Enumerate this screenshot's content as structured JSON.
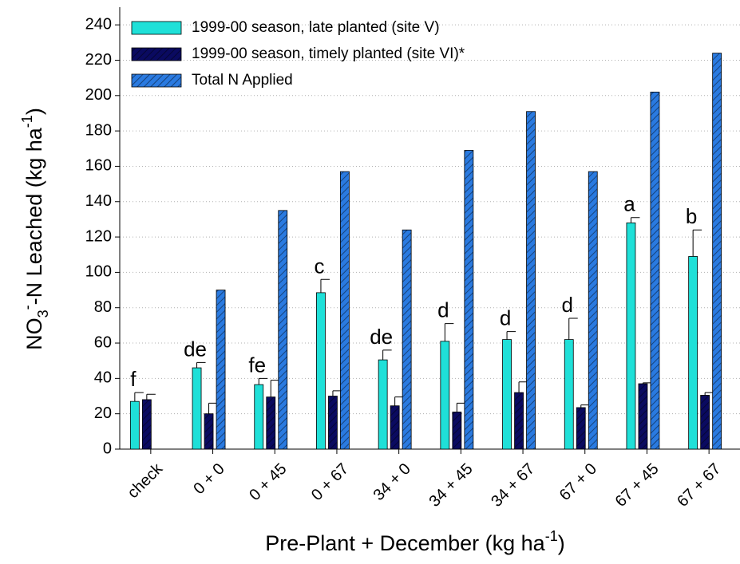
{
  "chart_data": {
    "type": "bar",
    "y_label": [
      "NO",
      "3",
      "-",
      "-N Leached (kg ha",
      "-1",
      ")"
    ],
    "x_label": [
      "Pre-Plant + December (kg ha",
      "-1",
      ")"
    ],
    "categories": [
      "check",
      "0 + 0",
      "0 + 45",
      "0 + 67",
      "34 + 0",
      "34 + 45",
      "34 + 67",
      "67 + 0",
      "67 + 45",
      "67 + 67"
    ],
    "annotations": [
      "f",
      "de",
      "fe",
      "c",
      "de",
      "d",
      "d",
      "d",
      "a",
      "b"
    ],
    "series": [
      {
        "name": "1999-00 season, late planted (site V)",
        "color": "#1fe0d8",
        "hatch": false,
        "values": [
          27,
          46,
          36.5,
          88.5,
          50.5,
          61,
          62,
          62,
          128,
          109
        ],
        "errors": [
          5,
          3,
          3.5,
          7.5,
          5.5,
          10,
          4.5,
          12,
          3,
          15
        ]
      },
      {
        "name": "1999-00 season, timely planted (site VI)*",
        "color": "#0a0a60",
        "hatch": true,
        "values": [
          28,
          20,
          29.5,
          30,
          24.5,
          21,
          32,
          23.5,
          37,
          30.5
        ],
        "errors": [
          3,
          6,
          9.5,
          3,
          5,
          5,
          6,
          1.5,
          0.5,
          1.5
        ]
      },
      {
        "name": "Total N Applied",
        "color": "#2a7ae0",
        "hatch": true,
        "values": [
          null,
          90,
          135,
          157,
          124,
          169,
          191,
          157,
          202,
          224
        ]
      }
    ],
    "ylim": [
      0,
      250
    ],
    "yticks": [
      0,
      20,
      40,
      60,
      80,
      100,
      120,
      140,
      160,
      180,
      200,
      220,
      240
    ],
    "grid": true
  }
}
